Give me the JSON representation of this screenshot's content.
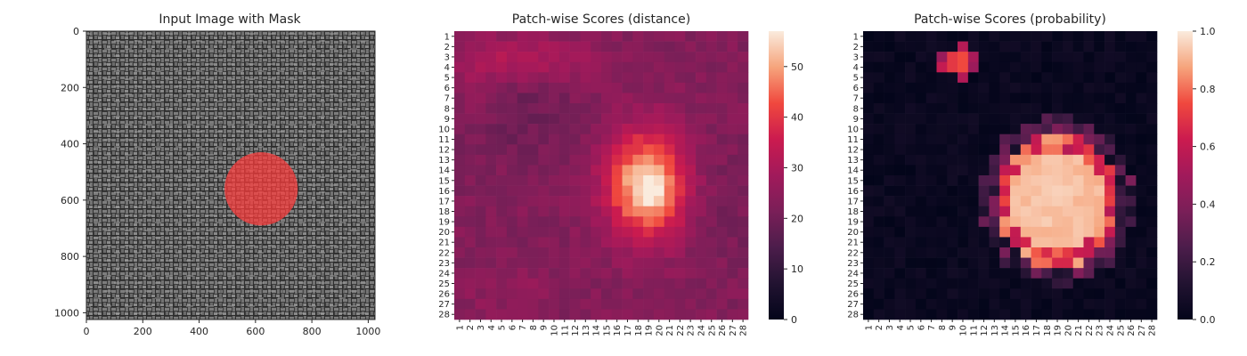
{
  "chart_data": [
    {
      "type": "image",
      "title": "Input Image with Mask",
      "x_ticks": [
        "0",
        "200",
        "400",
        "600",
        "800",
        "1000"
      ],
      "y_ticks": [
        "0",
        "200",
        "400",
        "600",
        "800",
        "1000"
      ],
      "xlim": [
        0,
        1024
      ],
      "ylim": [
        1024,
        0
      ],
      "image_content": "dark grey woven burlap texture",
      "mask": {
        "center_x": 620,
        "center_y": 560,
        "radius": 130,
        "color": "#ff3b3b"
      }
    },
    {
      "type": "heatmap",
      "title": "Patch-wise Scores (distance)",
      "rows": [
        "1",
        "2",
        "3",
        "4",
        "5",
        "6",
        "7",
        "8",
        "9",
        "10",
        "11",
        "12",
        "13",
        "14",
        "15",
        "16",
        "17",
        "18",
        "19",
        "20",
        "21",
        "22",
        "23",
        "24",
        "25",
        "26",
        "27",
        "28"
      ],
      "cols": [
        "1",
        "2",
        "3",
        "4",
        "5",
        "6",
        "7",
        "8",
        "9",
        "10",
        "11",
        "12",
        "13",
        "14",
        "15",
        "16",
        "17",
        "18",
        "19",
        "20",
        "21",
        "22",
        "23",
        "24",
        "25",
        "26",
        "27",
        "28"
      ],
      "colorbar": {
        "min": 0,
        "max": 57,
        "ticks": [
          "0",
          "10",
          "20",
          "30",
          "40",
          "50"
        ],
        "tick_values": [
          0,
          10,
          20,
          30,
          40,
          50
        ]
      },
      "colormap": "rocket",
      "field": {
        "base": 23,
        "blobs": [
          {
            "r": 15.5,
            "c": 18.7,
            "sr": 3.6,
            "sc": 2.6,
            "amp": 32
          },
          {
            "r": 15.8,
            "c": 19.7,
            "sr": 1.4,
            "sc": 1.0,
            "amp": 8
          },
          {
            "r": 3.3,
            "c": 7.5,
            "sr": 1.6,
            "sc": 4.5,
            "amp": 8
          },
          {
            "r": 5.5,
            "c": 2.5,
            "sr": 3.0,
            "sc": 1.8,
            "amp": 4
          },
          {
            "r": 25.5,
            "c": 5.5,
            "sr": 1.5,
            "sc": 3.0,
            "amp": 3
          }
        ],
        "dips": [
          {
            "r": 9,
            "c": 6,
            "sr": 3,
            "sc": 4,
            "amp": 4
          },
          {
            "r": 17,
            "c": 27,
            "sr": 4,
            "sc": 2.5,
            "amp": 2
          }
        ],
        "noise": 2.5
      }
    },
    {
      "type": "heatmap",
      "title": "Patch-wise Scores (probability)",
      "rows": [
        "1",
        "2",
        "3",
        "4",
        "5",
        "6",
        "7",
        "8",
        "9",
        "10",
        "11",
        "12",
        "13",
        "14",
        "15",
        "16",
        "17",
        "18",
        "19",
        "20",
        "21",
        "22",
        "23",
        "24",
        "25",
        "26",
        "27",
        "28"
      ],
      "cols": [
        "1",
        "2",
        "3",
        "4",
        "5",
        "6",
        "7",
        "8",
        "9",
        "10",
        "11",
        "12",
        "13",
        "14",
        "15",
        "16",
        "17",
        "18",
        "19",
        "20",
        "21",
        "22",
        "23",
        "24",
        "25",
        "26",
        "27",
        "28"
      ],
      "colorbar": {
        "min": 0,
        "max": 1,
        "ticks": [
          "0.0",
          "0.2",
          "0.4",
          "0.6",
          "0.8",
          "1.0"
        ],
        "tick_values": [
          0,
          0.2,
          0.4,
          0.6,
          0.8,
          1.0
        ]
      },
      "colormap": "rocket",
      "field": {
        "core": {
          "r": 17,
          "c": 19,
          "sr": 6.6,
          "sc": 5.9,
          "peak": 0.97
        },
        "ring_color_value": 0.55,
        "secondary": {
          "r": 3.5,
          "c": 9.7,
          "sr": 0.9,
          "sc": 1.3,
          "peak": 0.9
        },
        "noise": 0.06
      }
    }
  ]
}
